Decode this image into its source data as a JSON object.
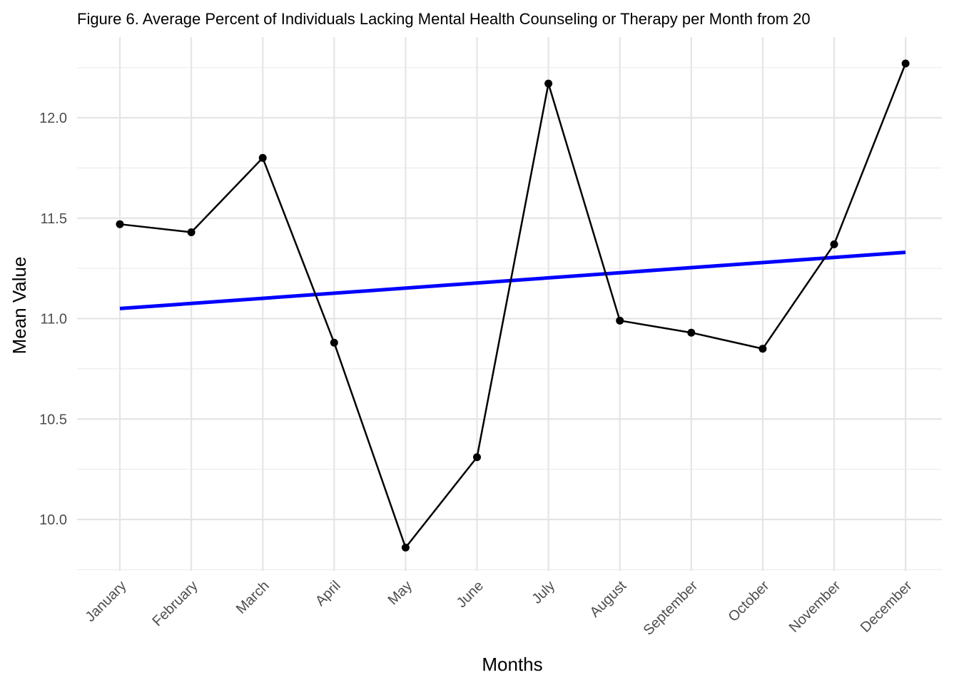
{
  "chart_data": {
    "type": "line",
    "title": "Figure 6. Average Percent of Individuals Lacking Mental Health Counseling or Therapy per Month from 20",
    "xlabel": "Months",
    "ylabel": "Mean Value",
    "categories": [
      "January",
      "February",
      "March",
      "April",
      "May",
      "June",
      "July",
      "August",
      "September",
      "October",
      "November",
      "December"
    ],
    "series": [
      {
        "values": [
          11.47,
          11.43,
          11.8,
          10.88,
          9.86,
          10.31,
          12.17,
          10.99,
          10.93,
          10.85,
          11.37,
          12.27
        ],
        "color": "#000000"
      }
    ],
    "trend_line": {
      "start": 11.05,
      "end": 11.33,
      "color": "#0000ff"
    },
    "y_ticks": [
      "10.0",
      "10.5",
      "11.0",
      "11.5",
      "12.0"
    ],
    "ylim": [
      9.75,
      12.35
    ],
    "grid": true,
    "legend": "none"
  }
}
